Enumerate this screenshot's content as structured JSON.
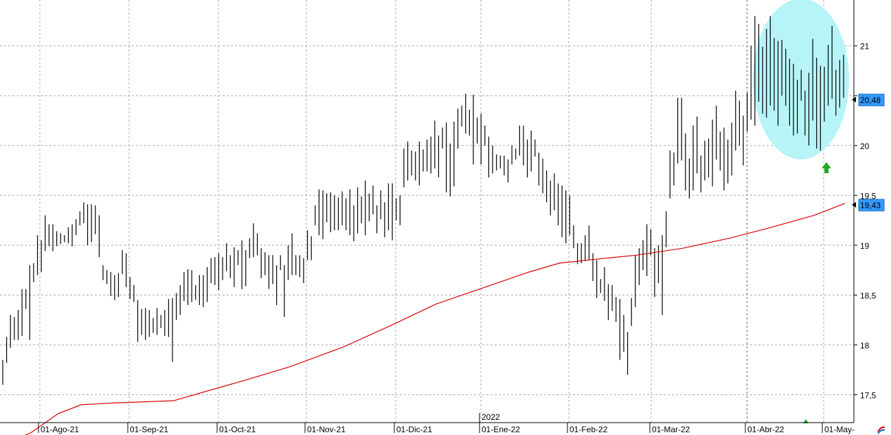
{
  "chart_data": {
    "type": "bar",
    "subtype": "ohlc",
    "title": "",
    "xlabel": "",
    "ylabel": "",
    "ylim": [
      17.22,
      21.46
    ],
    "y_ticks": [
      "21",
      "20,5",
      "20",
      "19,5",
      "19",
      "18,5",
      "18",
      "17,5"
    ],
    "y_tick_values": [
      21,
      20.5,
      20,
      19.5,
      19,
      18.5,
      18,
      17.5
    ],
    "x_ticks": [
      "01-Ago-21",
      "01-Sep-21",
      "01-Oct-21",
      "01-Nov-21",
      "01-Dic-21",
      "01-Ene-22",
      "01-Feb-22",
      "01-Mar-22",
      "01-Abr-22",
      "01-May-"
    ],
    "year_marker": "2022",
    "grid": true,
    "last_price": {
      "label": "20,48",
      "value": 20.48,
      "color": "#3399ff"
    },
    "moving_average": {
      "label": "19,43",
      "value": 19.43,
      "color": "#d60000",
      "points": [
        [
          0,
          17.0
        ],
        [
          7,
          17.12
        ],
        [
          14,
          17.31
        ],
        [
          20,
          17.4
        ],
        [
          30,
          17.42
        ],
        [
          44,
          17.44
        ],
        [
          52,
          17.53
        ],
        [
          62,
          17.64
        ],
        [
          74,
          17.78
        ],
        [
          88,
          17.98
        ],
        [
          100,
          18.19
        ],
        [
          112,
          18.41
        ],
        [
          124,
          18.57
        ],
        [
          136,
          18.73
        ],
        [
          144,
          18.82
        ],
        [
          156,
          18.87
        ],
        [
          164,
          18.9
        ],
        [
          176,
          18.97
        ],
        [
          188,
          19.07
        ],
        [
          198,
          19.17
        ],
        [
          210,
          19.3
        ],
        [
          218,
          19.42
        ]
      ]
    },
    "highlight": {
      "type": "ellipse",
      "color": "#b7f4f8"
    },
    "signal_arrows": [
      {
        "color": "#22aa22"
      }
    ],
    "bars": [
      [
        0,
        17.6,
        17.85
      ],
      [
        1,
        17.82,
        18.08
      ],
      [
        2,
        17.97,
        18.3
      ],
      [
        3,
        18.05,
        18.28
      ],
      [
        4,
        18.05,
        18.35
      ],
      [
        5,
        18.09,
        18.56
      ],
      [
        6,
        18.36,
        18.56
      ],
      [
        7,
        18.05,
        18.8
      ],
      [
        8,
        18.63,
        18.82
      ],
      [
        9,
        18.7,
        19.1
      ],
      [
        10,
        18.73,
        19.05
      ],
      [
        11,
        18.94,
        19.3
      ],
      [
        12,
        18.99,
        19.21
      ],
      [
        13,
        18.94,
        19.21
      ],
      [
        14,
        18.99,
        19.14
      ],
      [
        15,
        19.01,
        19.12
      ],
      [
        16,
        19.03,
        19.1
      ],
      [
        17,
        19.02,
        19.18
      ],
      [
        18,
        18.99,
        19.21
      ],
      [
        19,
        19.1,
        19.26
      ],
      [
        20,
        19.2,
        19.34
      ],
      [
        21,
        19.22,
        19.43
      ],
      [
        22,
        19.0,
        19.41
      ],
      [
        23,
        19.03,
        19.41
      ],
      [
        24,
        19.11,
        19.4
      ],
      [
        25,
        18.88,
        19.3
      ],
      [
        26,
        18.65,
        18.8
      ],
      [
        27,
        18.61,
        18.75
      ],
      [
        28,
        18.49,
        18.73
      ],
      [
        29,
        18.45,
        18.7
      ],
      [
        30,
        18.48,
        18.72
      ],
      [
        31,
        18.71,
        18.95
      ],
      [
        32,
        18.58,
        18.92
      ],
      [
        33,
        18.46,
        18.68
      ],
      [
        34,
        18.43,
        18.6
      ],
      [
        35,
        18.03,
        18.45
      ],
      [
        36,
        18.1,
        18.36
      ],
      [
        37,
        18.05,
        18.37
      ],
      [
        38,
        18.08,
        18.35
      ],
      [
        39,
        18.12,
        18.27
      ],
      [
        40,
        18.1,
        18.37
      ],
      [
        41,
        18.17,
        18.3
      ],
      [
        42,
        18.09,
        18.35
      ],
      [
        43,
        18.08,
        18.46
      ],
      [
        44,
        17.83,
        18.47
      ],
      [
        45,
        18.25,
        18.52
      ],
      [
        46,
        18.3,
        18.6
      ],
      [
        47,
        18.44,
        18.73
      ],
      [
        48,
        18.4,
        18.76
      ],
      [
        49,
        18.43,
        18.75
      ],
      [
        50,
        18.45,
        18.6
      ],
      [
        51,
        18.4,
        18.7
      ],
      [
        52,
        18.38,
        18.7
      ],
      [
        53,
        18.43,
        18.78
      ],
      [
        54,
        18.62,
        18.87
      ],
      [
        55,
        18.6,
        18.88
      ],
      [
        56,
        18.55,
        18.92
      ],
      [
        57,
        18.65,
        18.88
      ],
      [
        58,
        18.74,
        19.02
      ],
      [
        59,
        18.67,
        18.9
      ],
      [
        60,
        18.58,
        18.98
      ],
      [
        61,
        18.8,
        18.95
      ],
      [
        62,
        18.56,
        19.05
      ],
      [
        63,
        18.59,
        18.95
      ],
      [
        64,
        18.87,
        19.07
      ],
      [
        65,
        18.88,
        19.22
      ],
      [
        66,
        18.9,
        19.12
      ],
      [
        67,
        18.67,
        18.97
      ],
      [
        68,
        18.7,
        18.93
      ],
      [
        69,
        18.56,
        18.9
      ],
      [
        70,
        18.61,
        18.9
      ],
      [
        71,
        18.4,
        18.8
      ],
      [
        72,
        18.75,
        18.9
      ],
      [
        73,
        18.28,
        18.8
      ],
      [
        74,
        18.65,
        19.0
      ],
      [
        75,
        18.7,
        19.12
      ],
      [
        76,
        18.7,
        18.9
      ],
      [
        77,
        18.68,
        18.9
      ],
      [
        78,
        18.62,
        18.87
      ],
      [
        79,
        18.85,
        19.15
      ],
      [
        80,
        18.85,
        19.09
      ],
      [
        81,
        19.2,
        19.4
      ],
      [
        82,
        19.1,
        19.56
      ],
      [
        83,
        19.06,
        19.55
      ],
      [
        84,
        19.23,
        19.52
      ],
      [
        85,
        19.13,
        19.53
      ],
      [
        86,
        19.15,
        19.5
      ],
      [
        87,
        19.15,
        19.48
      ],
      [
        88,
        19.2,
        19.54
      ],
      [
        89,
        19.15,
        19.47
      ],
      [
        90,
        19.1,
        19.56
      ],
      [
        91,
        19.04,
        19.4
      ],
      [
        92,
        19.12,
        19.58
      ],
      [
        93,
        19.22,
        19.49
      ],
      [
        94,
        19.1,
        19.65
      ],
      [
        95,
        19.24,
        19.52
      ],
      [
        96,
        19.31,
        19.6
      ],
      [
        97,
        19.12,
        19.4
      ],
      [
        98,
        19.26,
        19.55
      ],
      [
        99,
        19.08,
        19.43
      ],
      [
        100,
        19.15,
        19.62
      ],
      [
        101,
        19.05,
        19.62
      ],
      [
        102,
        19.25,
        19.47
      ],
      [
        103,
        19.2,
        19.5
      ],
      [
        104,
        19.58,
        19.97
      ],
      [
        105,
        19.65,
        20.04
      ],
      [
        106,
        19.7,
        19.95
      ],
      [
        107,
        19.65,
        19.94
      ],
      [
        108,
        19.6,
        20.04
      ],
      [
        109,
        19.74,
        19.96
      ],
      [
        110,
        19.74,
        20.06
      ],
      [
        111,
        19.72,
        20.09
      ],
      [
        112,
        19.77,
        20.25
      ],
      [
        113,
        19.68,
        20.1
      ],
      [
        114,
        19.97,
        20.18
      ],
      [
        115,
        19.53,
        20.23
      ],
      [
        116,
        19.49,
        20.02
      ],
      [
        117,
        19.59,
        20.24
      ],
      [
        118,
        19.97,
        20.37
      ],
      [
        119,
        20.19,
        20.4
      ],
      [
        120,
        20.12,
        20.52
      ],
      [
        121,
        20.1,
        20.36
      ],
      [
        122,
        19.81,
        20.51
      ],
      [
        123,
        20.02,
        20.28
      ],
      [
        124,
        19.81,
        20.32
      ],
      [
        125,
        20.0,
        20.2
      ],
      [
        126,
        19.68,
        20.09
      ],
      [
        127,
        19.72,
        20.0
      ],
      [
        128,
        19.75,
        19.91
      ],
      [
        129,
        19.77,
        19.9
      ],
      [
        130,
        19.7,
        19.9
      ],
      [
        131,
        19.63,
        19.86
      ],
      [
        132,
        19.81,
        20.0
      ],
      [
        133,
        19.86,
        19.97
      ],
      [
        134,
        19.9,
        20.2
      ],
      [
        135,
        19.8,
        20.2
      ],
      [
        136,
        19.68,
        20.06
      ],
      [
        137,
        19.74,
        20.15
      ],
      [
        138,
        19.89,
        20.06
      ],
      [
        139,
        19.6,
        19.93
      ],
      [
        140,
        19.52,
        19.87
      ],
      [
        141,
        19.43,
        19.75
      ],
      [
        142,
        19.3,
        19.65
      ],
      [
        143,
        19.35,
        19.72
      ],
      [
        144,
        19.2,
        19.62
      ],
      [
        145,
        19.08,
        19.6
      ],
      [
        146,
        19.02,
        19.55
      ],
      [
        147,
        19.1,
        19.5
      ],
      [
        148,
        18.97,
        19.2
      ],
      [
        149,
        18.81,
        19.02
      ],
      [
        150,
        18.82,
        19.02
      ],
      [
        151,
        18.84,
        19.1
      ],
      [
        152,
        18.85,
        19.2
      ],
      [
        153,
        18.64,
        18.92
      ],
      [
        154,
        18.47,
        18.85
      ],
      [
        155,
        18.52,
        18.66
      ],
      [
        156,
        18.44,
        18.78
      ],
      [
        157,
        18.25,
        18.61
      ],
      [
        158,
        18.34,
        18.6
      ],
      [
        159,
        18.23,
        18.48
      ],
      [
        160,
        17.85,
        18.46
      ],
      [
        161,
        17.93,
        18.3
      ],
      [
        162,
        17.7,
        18.13
      ],
      [
        163,
        18.19,
        18.47
      ],
      [
        164,
        18.38,
        18.9
      ],
      [
        165,
        18.6,
        18.97
      ],
      [
        166,
        18.75,
        19.05
      ],
      [
        167,
        18.69,
        19.21
      ],
      [
        168,
        18.9,
        19.16
      ],
      [
        169,
        18.48,
        18.97
      ],
      [
        170,
        18.62,
        19.0
      ],
      [
        171,
        18.3,
        19.1
      ],
      [
        172,
        18.98,
        19.34
      ],
      [
        173,
        19.47,
        19.95
      ],
      [
        174,
        19.6,
        19.93
      ],
      [
        175,
        19.82,
        20.48
      ],
      [
        176,
        19.85,
        20.48
      ],
      [
        177,
        19.55,
        20.12
      ],
      [
        178,
        19.47,
        19.87
      ],
      [
        179,
        19.55,
        20.2
      ],
      [
        180,
        19.72,
        20.29
      ],
      [
        181,
        19.53,
        19.9
      ],
      [
        182,
        19.65,
        20.05
      ],
      [
        183,
        19.68,
        20.07
      ],
      [
        184,
        19.59,
        20.26
      ],
      [
        185,
        19.86,
        20.4
      ],
      [
        186,
        19.75,
        20.14
      ],
      [
        187,
        19.55,
        20.18
      ],
      [
        188,
        19.62,
        20.06
      ],
      [
        189,
        19.7,
        20.23
      ],
      [
        190,
        19.95,
        20.55
      ],
      [
        191,
        20.0,
        20.45
      ],
      [
        192,
        19.8,
        20.3
      ],
      [
        193,
        20.14,
        20.53
      ],
      [
        194,
        20.26,
        21.0
      ],
      [
        195,
        20.2,
        21.3
      ],
      [
        196,
        20.44,
        21.22
      ],
      [
        197,
        20.32,
        20.99
      ],
      [
        198,
        20.28,
        21.17
      ],
      [
        199,
        20.4,
        21.3
      ],
      [
        200,
        20.35,
        21.08
      ],
      [
        201,
        20.2,
        21.05
      ],
      [
        202,
        20.5,
        21.06
      ],
      [
        203,
        20.4,
        20.97
      ],
      [
        204,
        20.2,
        20.87
      ],
      [
        205,
        20.1,
        20.82
      ],
      [
        206,
        20.12,
        20.66
      ],
      [
        207,
        20.45,
        20.76
      ],
      [
        208,
        20.1,
        20.55
      ],
      [
        209,
        20.0,
        20.73
      ],
      [
        210,
        20.25,
        21.07
      ],
      [
        211,
        19.97,
        20.88
      ],
      [
        212,
        19.95,
        20.8
      ],
      [
        213,
        20.24,
        20.79
      ],
      [
        214,
        20.4,
        21.01
      ],
      [
        215,
        20.47,
        21.2
      ],
      [
        216,
        20.3,
        20.76
      ],
      [
        217,
        20.38,
        20.86
      ],
      [
        218,
        20.48,
        20.91
      ]
    ]
  }
}
